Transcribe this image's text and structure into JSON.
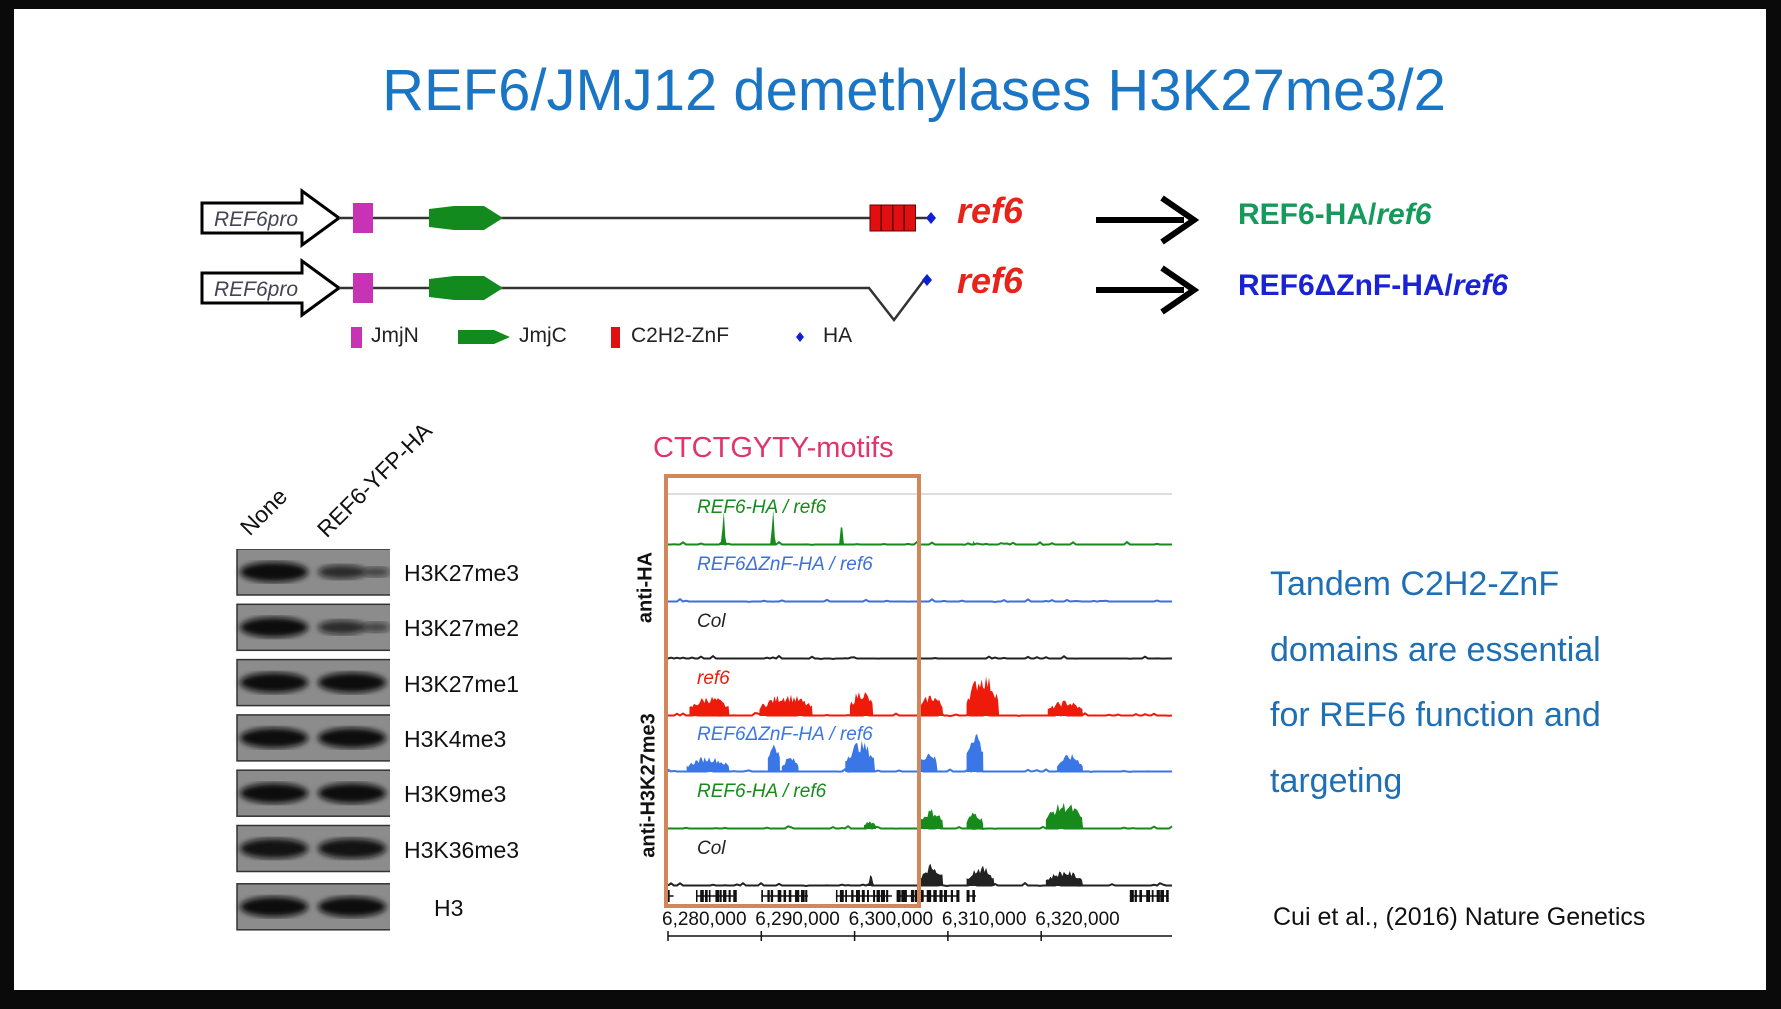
{
  "title": "REF6/JMJ12 demethylases H3K27me3/2",
  "constructs": [
    {
      "promoter": "REF6pro",
      "mutant": "ref6",
      "result_prefix": "REF6-HA/",
      "result_suffix": "ref6",
      "color": "#149a5a",
      "has_znf": true
    },
    {
      "promoter": "REF6pro",
      "mutant": "ref6",
      "result_prefix": "REF6ΔZnF-HA/",
      "result_suffix": "ref6",
      "color": "#1a22d6",
      "has_znf": false
    }
  ],
  "legend": {
    "jmjn": "JmjN",
    "jmjc": "JmjC",
    "znf": "C2H2-ZnF",
    "ha": "HA"
  },
  "domain_colors": {
    "jmjn": "#c832b4",
    "jmjc": "#138a1e",
    "znf": "#e01010",
    "ha": "#1020d0"
  },
  "western": {
    "lanes": [
      "None",
      "REF6-YFP-HA"
    ],
    "rows": [
      {
        "label": "H3K27me3",
        "intensity": [
          1.0,
          0.5
        ]
      },
      {
        "label": "H3K27me2",
        "intensity": [
          1.0,
          0.5
        ]
      },
      {
        "label": "H3K27me1",
        "intensity": [
          1.0,
          1.0
        ]
      },
      {
        "label": "H3K4me3",
        "intensity": [
          1.0,
          1.0
        ]
      },
      {
        "label": "H3K9me3",
        "intensity": [
          1.0,
          1.0
        ]
      },
      {
        "label": "H3K36me3",
        "intensity": [
          0.9,
          0.9
        ]
      },
      {
        "label": "H3",
        "intensity": [
          1.0,
          1.0
        ]
      }
    ]
  },
  "browser": {
    "motif_label": "CTCTGYTY-motifs",
    "group_labels": [
      "anti-HA",
      "anti-H3K27me3"
    ],
    "axis_ticks": [
      "6,280,000",
      "6,290,000",
      "6,300,000",
      "6,310,000",
      "6,320,000"
    ],
    "highlight_color": "#d2875a",
    "tracks": [
      {
        "label": "REF6-HA / ref6",
        "color": "#168a1a",
        "peaks": [
          [
            6285.5,
            6286.4,
            0.9
          ],
          [
            6290.8,
            6291.7,
            0.95
          ],
          [
            6298.2,
            6299.0,
            0.75
          ],
          [
            6312.6,
            6312.9,
            0.12
          ]
        ]
      },
      {
        "label": "REF6ΔZnF-HA / ref6",
        "color": "#3f6fd8",
        "peaks": []
      },
      {
        "label": "Col",
        "color": "#222222",
        "peaks": []
      },
      {
        "label": "ref6",
        "color": "#ee1a0a",
        "peaks": [
          [
            6282.3,
            6286.6,
            0.45
          ],
          [
            6289.8,
            6295.5,
            0.5
          ],
          [
            6299.5,
            6302.0,
            0.6
          ],
          [
            6307.0,
            6309.5,
            0.5
          ],
          [
            6312.0,
            6315.5,
            0.95
          ],
          [
            6320.7,
            6324.5,
            0.35
          ]
        ]
      },
      {
        "label": "REF6ΔZnF-HA / ref6",
        "color": "#3a76e6",
        "peaks": [
          [
            6282.0,
            6286.6,
            0.35
          ],
          [
            6290.7,
            6292.0,
            0.75
          ],
          [
            6292.2,
            6294.0,
            0.35
          ],
          [
            6299.0,
            6302.2,
            0.7
          ],
          [
            6307.0,
            6308.9,
            0.5
          ],
          [
            6312.0,
            6313.8,
            1.0
          ],
          [
            6321.7,
            6324.5,
            0.4
          ]
        ]
      },
      {
        "label": "REF6-HA / ref6",
        "color": "#168a1a",
        "peaks": [
          [
            6301.0,
            6302.3,
            0.2
          ],
          [
            6307.0,
            6309.5,
            0.45
          ],
          [
            6312.0,
            6313.8,
            0.4
          ],
          [
            6320.5,
            6324.5,
            0.6
          ]
        ]
      },
      {
        "label": "Col",
        "color": "#222222",
        "peaks": [
          [
            6301.2,
            6302.3,
            0.35
          ],
          [
            6307.0,
            6309.5,
            0.5
          ],
          [
            6312.0,
            6315.0,
            0.45
          ],
          [
            6320.5,
            6324.5,
            0.35
          ]
        ]
      }
    ]
  },
  "side_text": [
    "Tandem C2H2-ZnF",
    "domains are essential",
    "for REF6 function and",
    "targeting"
  ],
  "citation": "Cui et al., (2016) Nature Genetics"
}
